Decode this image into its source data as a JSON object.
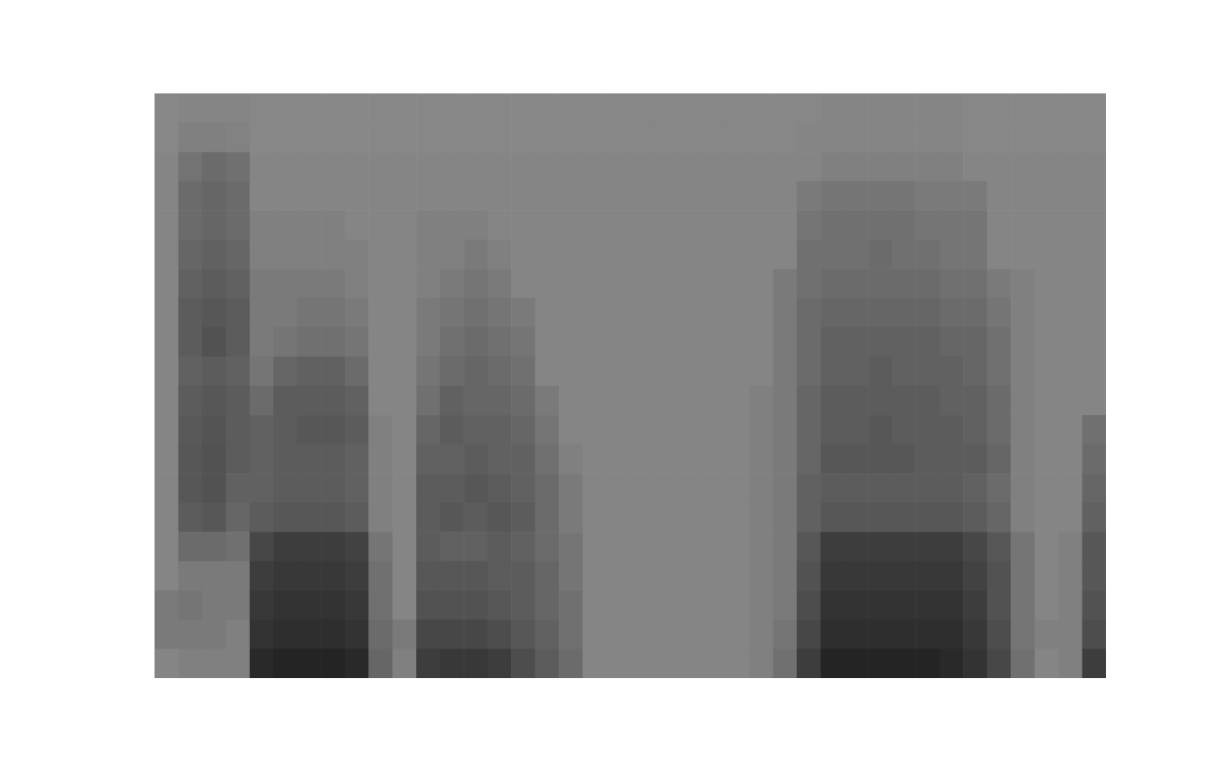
{
  "chart_data": {
    "type": "heatmap",
    "tick_labels": false,
    "zlim": [
      0,
      100
    ],
    "cells": [
      [
        47,
        47,
        48,
        48,
        48,
        48,
        48,
        48,
        48,
        48,
        48,
        48,
        48,
        48,
        48,
        48,
        48,
        52,
        52,
        48
      ],
      [
        48,
        50,
        55,
        58,
        58,
        60,
        62,
        64,
        64,
        62,
        64,
        65,
        66,
        66,
        64,
        58,
        52,
        54,
        52,
        50
      ],
      [
        48,
        50,
        58,
        60,
        60,
        62,
        64,
        66,
        68,
        64,
        66,
        67,
        68,
        68,
        66,
        58,
        52,
        52,
        52,
        50
      ],
      [
        48,
        49,
        56,
        58,
        58,
        60,
        62,
        64,
        64,
        62,
        64,
        64,
        64,
        62,
        60,
        56,
        52,
        52,
        50,
        50
      ],
      [
        47,
        47,
        48,
        48,
        50,
        50,
        52,
        52,
        52,
        54,
        58,
        62,
        62,
        62,
        64,
        72,
        76,
        78,
        80,
        84
      ],
      [
        47,
        47,
        48,
        48,
        50,
        50,
        52,
        52,
        54,
        60,
        64,
        64,
        64,
        64,
        66,
        76,
        78,
        80,
        82,
        86
      ],
      [
        47,
        47,
        48,
        48,
        50,
        50,
        52,
        54,
        56,
        62,
        64,
        66,
        64,
        64,
        66,
        76,
        78,
        80,
        82,
        86
      ],
      [
        47,
        47,
        48,
        48,
        50,
        50,
        52,
        54,
        56,
        62,
        64,
        66,
        64,
        64,
        66,
        76,
        78,
        80,
        82,
        86
      ],
      [
        47,
        47,
        48,
        48,
        48,
        50,
        50,
        52,
        54,
        58,
        62,
        64,
        62,
        62,
        64,
        74,
        76,
        78,
        80,
        84
      ],
      [
        47,
        47,
        48,
        48,
        48,
        48,
        48,
        48,
        48,
        48,
        48,
        50,
        50,
        50,
        50,
        54,
        56,
        56,
        58,
        60
      ],
      [
        47,
        47,
        48,
        48,
        48,
        48,
        48,
        48,
        48,
        48,
        48,
        48,
        48,
        48,
        48,
        48,
        48,
        48,
        52,
        50
      ],
      [
        47,
        47,
        48,
        48,
        50,
        50,
        50,
        52,
        52,
        54,
        56,
        60,
        62,
        64,
        64,
        64,
        66,
        68,
        72,
        76
      ],
      [
        47,
        47,
        48,
        48,
        50,
        50,
        52,
        54,
        56,
        58,
        62,
        64,
        62,
        64,
        66,
        62,
        66,
        68,
        72,
        78
      ],
      [
        47,
        47,
        48,
        48,
        50,
        52,
        54,
        56,
        58,
        60,
        60,
        62,
        64,
        66,
        64,
        62,
        66,
        68,
        72,
        78
      ],
      [
        47,
        47,
        48,
        48,
        48,
        50,
        52,
        54,
        56,
        58,
        60,
        62,
        62,
        64,
        66,
        64,
        64,
        66,
        70,
        76
      ],
      [
        47,
        47,
        48,
        48,
        48,
        48,
        48,
        52,
        54,
        56,
        58,
        60,
        62,
        62,
        64,
        62,
        64,
        64,
        66,
        70
      ],
      [
        47,
        47,
        48,
        48,
        48,
        48,
        48,
        48,
        48,
        48,
        52,
        54,
        56,
        58,
        58,
        58,
        60,
        60,
        62,
        64
      ],
      [
        47,
        47,
        48,
        48,
        48,
        48,
        48,
        48,
        48,
        48,
        48,
        48,
        50,
        52,
        52,
        54,
        54,
        56,
        56,
        58
      ],
      [
        47,
        47,
        48,
        48,
        48,
        48,
        48,
        48,
        48,
        48,
        48,
        48,
        48,
        48,
        48,
        48,
        48,
        48,
        48,
        48
      ],
      [
        47,
        47,
        48,
        48,
        48,
        48,
        48,
        48,
        48,
        48,
        48,
        48,
        48,
        48,
        48,
        48,
        48,
        48,
        48,
        48
      ],
      [
        47,
        47,
        48,
        48,
        48,
        48,
        48,
        48,
        48,
        48,
        48,
        48,
        48,
        48,
        48,
        48,
        48,
        48,
        48,
        48
      ],
      [
        47,
        47,
        48,
        48,
        48,
        48,
        48,
        48,
        48,
        48,
        48,
        48,
        48,
        48,
        48,
        48,
        48,
        48,
        48,
        48
      ],
      [
        47,
        47,
        48,
        48,
        48,
        48,
        48,
        48,
        48,
        48,
        48,
        48,
        48,
        48,
        48,
        48,
        48,
        48,
        48,
        48
      ],
      [
        47,
        47,
        48,
        48,
        48,
        48,
        48,
        48,
        48,
        48,
        48,
        48,
        48,
        48,
        48,
        48,
        48,
        48,
        48,
        48
      ],
      [
        47,
        47,
        48,
        48,
        48,
        48,
        48,
        48,
        48,
        48,
        48,
        48,
        48,
        48,
        48,
        48,
        48,
        48,
        48,
        48
      ],
      [
        47,
        47,
        48,
        48,
        48,
        48,
        48,
        48,
        48,
        48,
        50,
        50,
        50,
        50,
        50,
        50,
        50,
        50,
        50,
        50
      ],
      [
        47,
        47,
        48,
        48,
        48,
        48,
        52,
        52,
        52,
        52,
        52,
        52,
        52,
        52,
        52,
        52,
        52,
        52,
        54,
        56
      ],
      [
        47,
        48,
        48,
        52,
        54,
        56,
        56,
        58,
        58,
        58,
        60,
        60,
        60,
        62,
        62,
        66,
        68,
        70,
        72,
        76
      ],
      [
        48,
        48,
        50,
        54,
        56,
        56,
        58,
        60,
        62,
        62,
        64,
        64,
        66,
        64,
        66,
        76,
        78,
        80,
        82,
        86
      ],
      [
        48,
        48,
        50,
        54,
        56,
        56,
        58,
        60,
        62,
        62,
        64,
        64,
        66,
        64,
        66,
        76,
        78,
        80,
        82,
        86
      ],
      [
        48,
        48,
        50,
        54,
        56,
        58,
        58,
        60,
        62,
        64,
        64,
        66,
        66,
        64,
        66,
        76,
        78,
        80,
        82,
        86
      ],
      [
        48,
        48,
        50,
        54,
        56,
        56,
        58,
        60,
        62,
        62,
        64,
        64,
        66,
        64,
        66,
        76,
        78,
        80,
        82,
        86
      ],
      [
        48,
        48,
        50,
        52,
        54,
        56,
        58,
        60,
        62,
        62,
        64,
        64,
        64,
        64,
        66,
        76,
        78,
        80,
        82,
        86
      ],
      [
        48,
        48,
        50,
        52,
        54,
        54,
        56,
        58,
        60,
        62,
        62,
        64,
        64,
        64,
        66,
        76,
        78,
        80,
        82,
        84
      ],
      [
        47,
        47,
        48,
        52,
        54,
        54,
        56,
        58,
        60,
        60,
        62,
        62,
        64,
        62,
        64,
        72,
        74,
        76,
        78,
        80
      ],
      [
        47,
        47,
        48,
        48,
        48,
        48,
        52,
        54,
        56,
        56,
        58,
        58,
        60,
        58,
        60,
        66,
        68,
        68,
        70,
        72
      ],
      [
        47,
        47,
        48,
        48,
        48,
        48,
        50,
        50,
        50,
        50,
        50,
        50,
        50,
        50,
        50,
        54,
        54,
        54,
        54,
        56
      ],
      [
        47,
        47,
        48,
        48,
        48,
        48,
        48,
        48,
        48,
        48,
        48,
        48,
        48,
        48,
        48,
        48,
        48,
        48,
        50,
        48
      ],
      [
        47,
        47,
        48,
        48,
        48,
        48,
        48,
        48,
        48,
        48,
        48,
        48,
        48,
        48,
        48,
        50,
        50,
        50,
        50,
        50
      ],
      [
        47,
        47,
        48,
        48,
        48,
        48,
        48,
        48,
        48,
        48,
        48,
        56,
        58,
        60,
        62,
        66,
        66,
        68,
        70,
        76
      ]
    ]
  }
}
